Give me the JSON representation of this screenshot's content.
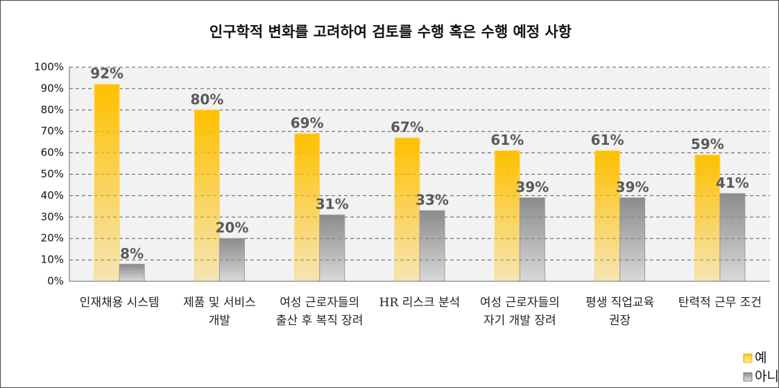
{
  "chart_data": {
    "type": "bar",
    "title": "인구학적 변화를 고려하여 검토를 수행 혹은 수행 예정 사항",
    "categories": [
      "인재채용 시스템",
      "제품 및 서비스 개발",
      "여성 근로자들의 출산 후 복직 장려",
      "HR 리스크 분석",
      "여성 근로자들의 자기 개발 장려",
      "평생 직업교육 권장",
      "탄력적 근무 조건"
    ],
    "series": [
      {
        "name": "예",
        "color": "#ffc000",
        "values": [
          92,
          80,
          69,
          67,
          61,
          61,
          59
        ],
        "value_labels": [
          "92%",
          "80%",
          "69%",
          "67%",
          "61%",
          "61%",
          "59%"
        ]
      },
      {
        "name": "아니오",
        "color": "#8c8c8c",
        "values": [
          8,
          20,
          31,
          33,
          39,
          39,
          41
        ],
        "value_labels": [
          "8%",
          "20%",
          "31%",
          "33%",
          "39%",
          "39%",
          "41%"
        ]
      }
    ],
    "ylim": [
      0,
      100
    ],
    "yticks": [
      {
        "value": 0,
        "label": "0%"
      },
      {
        "value": 10,
        "label": "10%"
      },
      {
        "value": 20,
        "label": "20%"
      },
      {
        "value": 30,
        "label": "30%"
      },
      {
        "value": 40,
        "label": "40%"
      },
      {
        "value": 50,
        "label": "50%"
      },
      {
        "value": 60,
        "label": "60%"
      },
      {
        "value": 70,
        "label": "70%"
      },
      {
        "value": 80,
        "label": "80%"
      },
      {
        "value": 90,
        "label": "90%"
      },
      {
        "value": 100,
        "label": "100%"
      }
    ],
    "grid": true,
    "legend": "bottom-right"
  }
}
